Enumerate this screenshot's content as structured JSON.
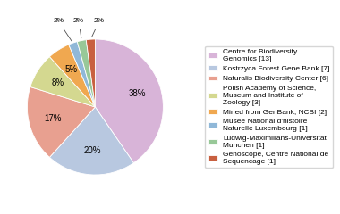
{
  "chart_data": {
    "type": "pie",
    "categories": [
      "Centre for Biodiversity\nGenomics [13]",
      "Kostrzyca Forest Gene Bank [7]",
      "Naturalis Biodiversity Center [6]",
      "Polish Academy of Science,\nMuseum and Institute of\nZoology [3]",
      "Mined from GenBank, NCBI [2]",
      "Musee National d'histoire\nNaturelle Luxembourg [1]",
      "Ludwig-Maximilians-Universitat\nMunchen [1]",
      "Genoscope, Centre National de\nSequencage [1]"
    ],
    "values": [
      38,
      20,
      17,
      8,
      5,
      2,
      2,
      2
    ],
    "value_labels": [
      "38%",
      "20%",
      "17%",
      "8%",
      "5%",
      "2%",
      "2%",
      "2%"
    ],
    "colors": [
      "#d8b4d8",
      "#b8c8e0",
      "#e8a090",
      "#d4d890",
      "#f0a850",
      "#90b8d8",
      "#98c898",
      "#c86040"
    ],
    "data_labels": true,
    "legend": "center right"
  }
}
